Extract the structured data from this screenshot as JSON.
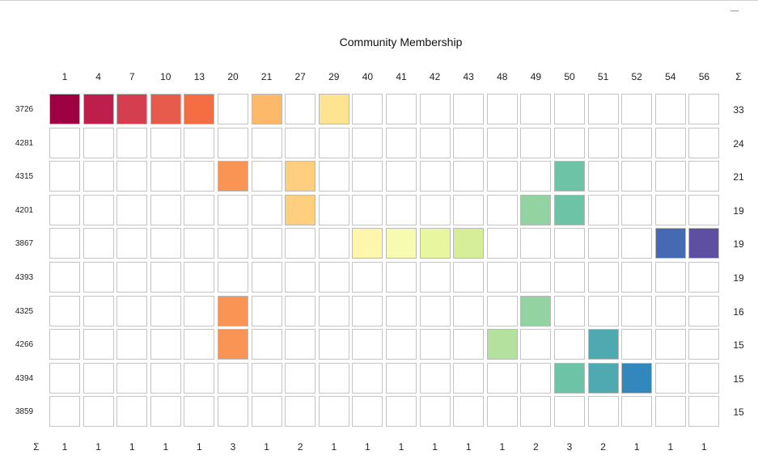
{
  "window": {
    "controls": [
      "minimize"
    ]
  },
  "chart_data": {
    "type": "heatmap",
    "title": "Community Membership",
    "sum_symbol": "Σ",
    "columns": [
      "1",
      "4",
      "7",
      "10",
      "13",
      "20",
      "21",
      "27",
      "29",
      "40",
      "41",
      "42",
      "43",
      "48",
      "49",
      "50",
      "51",
      "52",
      "54",
      "56"
    ],
    "rows": [
      "3726",
      "4281",
      "4315",
      "4201",
      "3867",
      "4393",
      "4325",
      "4266",
      "4394",
      "3859"
    ],
    "row_totals": [
      33,
      24,
      21,
      19,
      19,
      19,
      16,
      15,
      15,
      15
    ],
    "column_totals": [
      1,
      1,
      1,
      1,
      1,
      3,
      1,
      2,
      1,
      1,
      1,
      1,
      1,
      1,
      2,
      3,
      2,
      1,
      1,
      1
    ],
    "column_colors": {
      "1": "#9e0142",
      "4": "#be1e4b",
      "7": "#d53e4f",
      "10": "#e65b4c",
      "13": "#f46d43",
      "20": "#f99455",
      "21": "#fdb96a",
      "27": "#fdcf7f",
      "29": "#fee391",
      "40": "#fff6ad",
      "41": "#f6fbb1",
      "42": "#e9f6a0",
      "43": "#d5ee97",
      "48": "#b5e19e",
      "49": "#92d3a1",
      "50": "#6cc3a5",
      "51": "#4ea9b0",
      "52": "#3288bd",
      "54": "#4669b4",
      "56": "#5e4fa2"
    },
    "membership": [
      {
        "row": "3726",
        "columns": [
          "1",
          "4",
          "7",
          "10",
          "13",
          "21",
          "29"
        ]
      },
      {
        "row": "4281",
        "columns": []
      },
      {
        "row": "4315",
        "columns": [
          "20",
          "27",
          "50"
        ]
      },
      {
        "row": "4201",
        "columns": [
          "27",
          "49",
          "50"
        ]
      },
      {
        "row": "3867",
        "columns": [
          "40",
          "41",
          "42",
          "43",
          "54",
          "56"
        ]
      },
      {
        "row": "4393",
        "columns": []
      },
      {
        "row": "4325",
        "columns": [
          "20",
          "49"
        ]
      },
      {
        "row": "4266",
        "columns": [
          "20",
          "48",
          "51"
        ]
      },
      {
        "row": "4394",
        "columns": [
          "50",
          "51",
          "52"
        ]
      },
      {
        "row": "3859",
        "columns": []
      }
    ],
    "empty_cell_color": "#ffffff",
    "grid_line_color": "#c4c4c4"
  }
}
